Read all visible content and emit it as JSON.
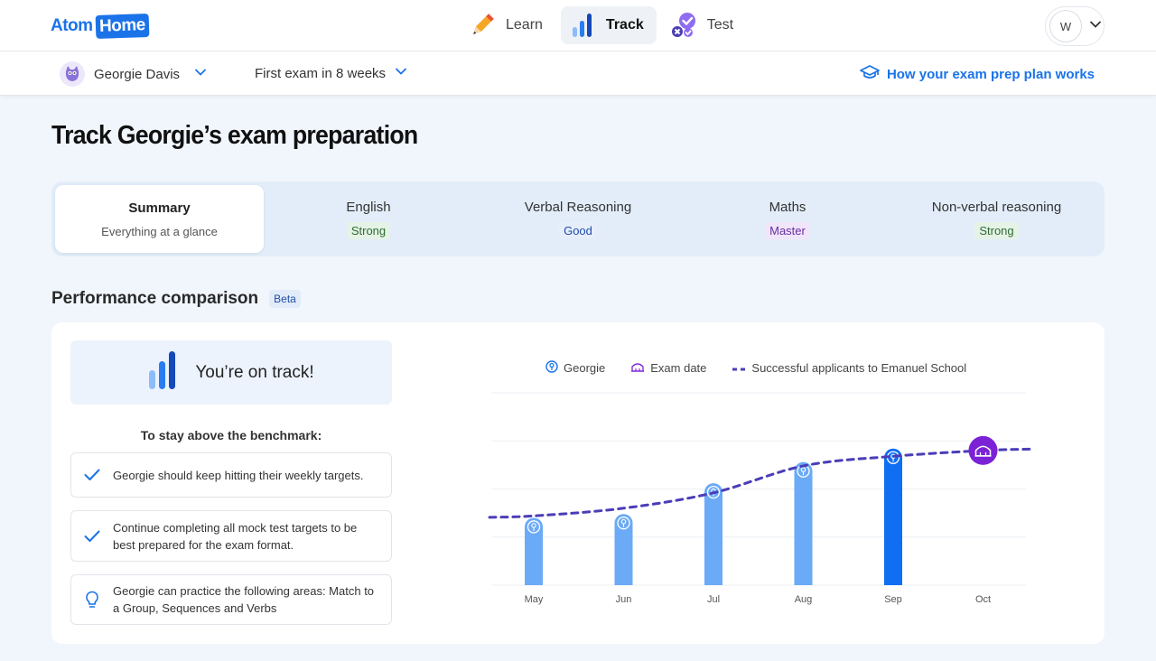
{
  "brand": {
    "part1": "Atom",
    "part2": "Home"
  },
  "nav": [
    {
      "label": "Learn",
      "icon": "pencil-icon",
      "active": false
    },
    {
      "label": "Track",
      "icon": "bar-chart-icon",
      "active": true
    },
    {
      "label": "Test",
      "icon": "test-check-icon",
      "active": false
    }
  ],
  "account": {
    "initial": "W"
  },
  "subbar": {
    "student_name": "Georgie Davis",
    "exam_timing": "First exam in 8 weeks",
    "how_link": "How your exam prep plan works"
  },
  "page_title": "Track Georgie’s exam preparation",
  "tabs": [
    {
      "title": "Summary",
      "sub": "Everything at a glance",
      "active": true
    },
    {
      "title": "English",
      "badge": "Strong",
      "tone": "green"
    },
    {
      "title": "Verbal Reasoning",
      "badge": "Good",
      "tone": "blue"
    },
    {
      "title": "Maths",
      "badge": "Master",
      "tone": "purple"
    },
    {
      "title": "Non-verbal reasoning",
      "badge": "Strong",
      "tone": "green"
    }
  ],
  "performance": {
    "title": "Performance comparison",
    "badge": "Beta",
    "status": "You’re on track!",
    "benchmark_title": "To stay above the benchmark:",
    "tips": [
      {
        "icon": "check-icon",
        "text": "Georgie should keep hitting their weekly targets."
      },
      {
        "icon": "check-icon",
        "text": "Continue completing all mock test targets to be best prepared for the exam format."
      },
      {
        "icon": "lightbulb-icon",
        "text": "Georgie can practice the following areas: Match to a Group, Sequences and Verbs"
      }
    ]
  },
  "legend": {
    "student": "Georgie",
    "exam": "Exam date",
    "benchmark": "Successful applicants to Emanuel School"
  },
  "colors": {
    "accent": "#1a73e8",
    "bar_light": "#6aaaf7",
    "bar_current": "#0f6ef2",
    "benchmark_line": "#4b3db8",
    "exam_marker": "#7b22d6"
  },
  "chart_data": {
    "type": "bar",
    "categories": [
      "May",
      "Jun",
      "Jul",
      "Aug",
      "Sep",
      "Oct"
    ],
    "series": [
      {
        "name": "Georgie",
        "values": [
          0.35,
          0.37,
          0.53,
          0.64,
          0.71,
          null
        ]
      },
      {
        "name": "Successful applicants to Emanuel School",
        "type": "line",
        "style": "dashed",
        "values": [
          0.36,
          0.4,
          0.48,
          0.62,
          0.67,
          0.7
        ]
      }
    ],
    "exam_date_category": "Oct",
    "current_category": "Sep",
    "ylim": [
      0,
      1
    ],
    "grid": true,
    "legend_position": "top"
  }
}
